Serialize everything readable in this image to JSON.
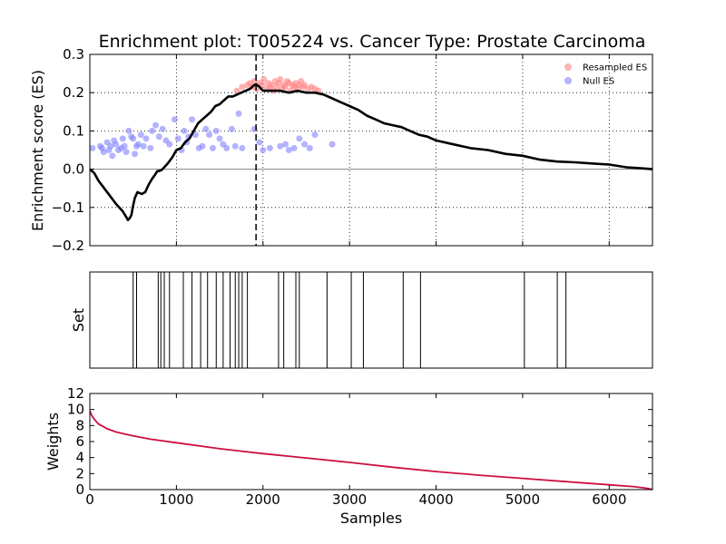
{
  "chart_data": [
    {
      "type": "line",
      "title": "Enrichment plot: T005224 vs. Cancer Type: Prostate Carcinoma",
      "xlabel": "",
      "ylabel": "Enrichment score (ES)",
      "xlim": [
        0,
        6500
      ],
      "ylim": [
        -0.2,
        0.3
      ],
      "yticks": [
        -0.2,
        -0.1,
        0.0,
        0.1,
        0.2,
        0.3
      ],
      "ytick_labels": [
        "−0.2",
        "−0.1",
        "0.0",
        "0.1",
        "0.2",
        "0.3"
      ],
      "xticks": [
        0,
        1000,
        2000,
        3000,
        4000,
        5000,
        6000
      ],
      "grid": "dotted",
      "legend_position": "top-right",
      "legend": [
        {
          "label": "Resampled ES",
          "color": "#ff8080"
        },
        {
          "label": "Null ES",
          "color": "#8080ff"
        }
      ],
      "vline_x": 1920,
      "series": [
        {
          "kind": "line",
          "color": "#000000",
          "x": [
            0,
            50,
            100,
            200,
            300,
            380,
            420,
            440,
            460,
            480,
            500,
            520,
            550,
            600,
            640,
            680,
            720,
            760,
            780,
            800,
            830,
            860,
            900,
            950,
            1000,
            1050,
            1100,
            1150,
            1200,
            1250,
            1300,
            1350,
            1400,
            1450,
            1500,
            1550,
            1600,
            1650,
            1700,
            1750,
            1800,
            1850,
            1900,
            1920,
            1960,
            2000,
            2100,
            2200,
            2300,
            2400,
            2500,
            2600,
            2700,
            2800,
            2900,
            3000,
            3100,
            3200,
            3300,
            3400,
            3500,
            3600,
            3700,
            3800,
            3900,
            4000,
            4200,
            4400,
            4600,
            4800,
            5000,
            5200,
            5400,
            5600,
            5800,
            6000,
            6200,
            6400,
            6500
          ],
          "y": [
            0.0,
            -0.01,
            -0.03,
            -0.06,
            -0.09,
            -0.11,
            -0.125,
            -0.133,
            -0.128,
            -0.12,
            -0.095,
            -0.075,
            -0.06,
            -0.065,
            -0.06,
            -0.04,
            -0.025,
            -0.012,
            -0.005,
            -0.005,
            -0.002,
            0.005,
            0.015,
            0.03,
            0.05,
            0.055,
            0.07,
            0.08,
            0.1,
            0.12,
            0.13,
            0.14,
            0.15,
            0.165,
            0.17,
            0.18,
            0.19,
            0.19,
            0.195,
            0.2,
            0.205,
            0.21,
            0.22,
            0.222,
            0.215,
            0.205,
            0.205,
            0.205,
            0.2,
            0.205,
            0.2,
            0.2,
            0.195,
            0.185,
            0.175,
            0.165,
            0.155,
            0.14,
            0.13,
            0.12,
            0.115,
            0.11,
            0.1,
            0.09,
            0.085,
            0.075,
            0.065,
            0.055,
            0.05,
            0.04,
            0.035,
            0.025,
            0.02,
            0.018,
            0.015,
            0.012,
            0.005,
            0.002,
            0.0
          ]
        },
        {
          "kind": "scatter",
          "name": "Null ES",
          "color": "#8080ff",
          "x": [
            30,
            120,
            140,
            160,
            200,
            220,
            240,
            260,
            280,
            300,
            330,
            360,
            380,
            400,
            420,
            450,
            480,
            500,
            520,
            540,
            560,
            590,
            620,
            650,
            700,
            720,
            760,
            800,
            840,
            880,
            920,
            980,
            1020,
            1060,
            1090,
            1120,
            1140,
            1180,
            1220,
            1260,
            1300,
            1340,
            1380,
            1420,
            1460,
            1500,
            1540,
            1580,
            1640,
            1680,
            1720,
            1760,
            1900,
            1960,
            2000,
            2080,
            2200,
            2260,
            2300,
            2360,
            2420,
            2480,
            2540,
            2600,
            2800
          ],
          "y": [
            0.055,
            0.06,
            0.055,
            0.045,
            0.07,
            0.05,
            0.06,
            0.035,
            0.075,
            0.065,
            0.05,
            0.055,
            0.08,
            0.06,
            0.045,
            0.1,
            0.085,
            0.08,
            0.04,
            0.06,
            0.065,
            0.09,
            0.06,
            0.08,
            0.055,
            0.1,
            0.115,
            0.085,
            0.105,
            0.075,
            0.065,
            0.13,
            0.08,
            0.05,
            0.1,
            0.07,
            0.085,
            0.13,
            0.09,
            0.055,
            0.06,
            0.105,
            0.09,
            0.055,
            0.1,
            0.08,
            0.065,
            0.055,
            0.105,
            0.06,
            0.145,
            0.055,
            0.105,
            0.07,
            0.05,
            0.055,
            0.06,
            0.065,
            0.05,
            0.055,
            0.08,
            0.065,
            0.055,
            0.09,
            0.065
          ]
        },
        {
          "kind": "scatter",
          "name": "Resampled ES",
          "color": "#ff8080",
          "x": [
            1700,
            1760,
            1820,
            1850,
            1880,
            1900,
            1930,
            1960,
            1990,
            2010,
            2040,
            2060,
            2080,
            2100,
            2120,
            2140,
            2160,
            2180,
            2200,
            2220,
            2240,
            2260,
            2280,
            2300,
            2320,
            2340,
            2360,
            2380,
            2400,
            2420,
            2440,
            2460,
            2480,
            2520,
            2560,
            2600,
            2640
          ],
          "y": [
            0.205,
            0.215,
            0.22,
            0.225,
            0.215,
            0.23,
            0.21,
            0.225,
            0.22,
            0.235,
            0.21,
            0.225,
            0.215,
            0.22,
            0.205,
            0.23,
            0.215,
            0.225,
            0.235,
            0.21,
            0.22,
            0.215,
            0.23,
            0.225,
            0.205,
            0.22,
            0.215,
            0.225,
            0.21,
            0.22,
            0.23,
            0.215,
            0.22,
            0.21,
            0.215,
            0.21,
            0.205
          ]
        }
      ]
    },
    {
      "type": "bar",
      "ylabel": "Set",
      "xlim": [
        0,
        6500
      ],
      "hits": [
        500,
        540,
        790,
        820,
        860,
        920,
        1080,
        1180,
        1280,
        1360,
        1460,
        1540,
        1620,
        1680,
        1720,
        1760,
        1820,
        2180,
        2240,
        2380,
        2420,
        2740,
        3020,
        3160,
        3620,
        3820,
        5020,
        5400,
        5500
      ]
    },
    {
      "type": "line",
      "xlabel": "Samples",
      "ylabel": "Weights",
      "xlim": [
        0,
        6500
      ],
      "ylim": [
        0,
        12
      ],
      "yticks": [
        0,
        2,
        4,
        6,
        8,
        10,
        12
      ],
      "xticks": [
        0,
        1000,
        2000,
        3000,
        4000,
        5000,
        6000
      ],
      "series": [
        {
          "kind": "line",
          "color": "#cc1040",
          "x": [
            0,
            20,
            50,
            100,
            150,
            200,
            300,
            400,
            500,
            700,
            1000,
            1500,
            2000,
            2500,
            3000,
            3500,
            4000,
            4500,
            5000,
            5500,
            6000,
            6300,
            6450,
            6500
          ],
          "y": [
            9.8,
            9.3,
            8.8,
            8.2,
            7.9,
            7.6,
            7.2,
            6.95,
            6.7,
            6.3,
            5.85,
            5.1,
            4.5,
            3.95,
            3.4,
            2.8,
            2.25,
            1.8,
            1.4,
            1.0,
            0.6,
            0.35,
            0.15,
            0.0
          ]
        }
      ]
    }
  ]
}
